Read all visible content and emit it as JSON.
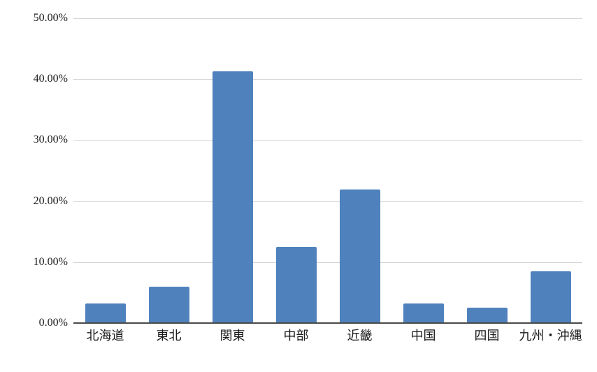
{
  "chart_data": {
    "type": "bar",
    "title": "",
    "xlabel": "",
    "ylabel": "",
    "categories": [
      "北海道",
      "東北",
      "関東",
      "中部",
      "近畿",
      "中国",
      "四国",
      "九州・沖縄"
    ],
    "values": [
      3.2,
      6.0,
      41.3,
      12.5,
      21.9,
      3.2,
      2.5,
      8.5
    ],
    "value_unit": "%",
    "ylim": [
      0,
      50
    ],
    "yticks": [
      {
        "label": "0.00%",
        "value": 0
      },
      {
        "label": "10.00%",
        "value": 10
      },
      {
        "label": "20.00%",
        "value": 20
      },
      {
        "label": "30.00%",
        "value": 30
      },
      {
        "label": "40.00%",
        "value": 40
      },
      {
        "label": "50.00%",
        "value": 50
      }
    ],
    "grid": true,
    "legend": false,
    "colors": {
      "bar_fill": "#4F81BD",
      "gridline": "#D6D6D6",
      "axis_line": "#4A4A4A",
      "text": "#1A1A1A",
      "background": "#FFFFFF"
    }
  }
}
